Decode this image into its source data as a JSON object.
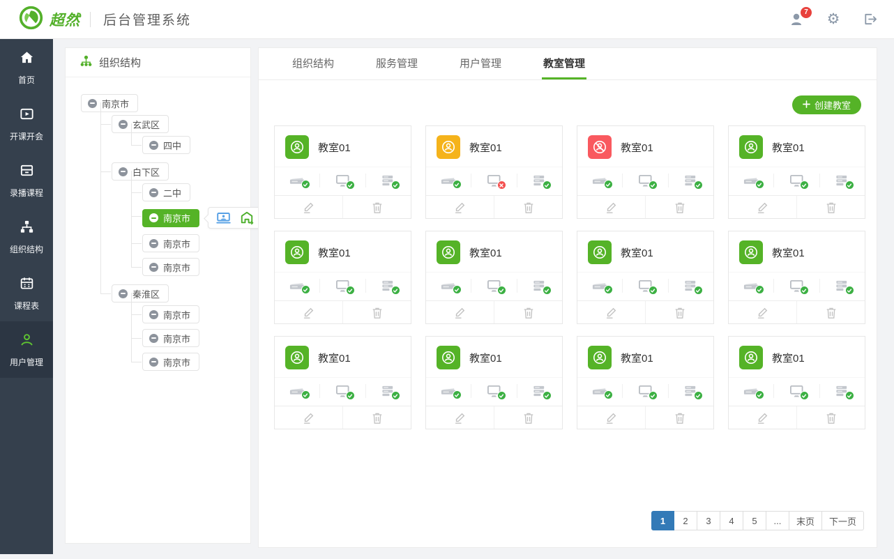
{
  "header": {
    "brand": "超然",
    "app_title": "后台管理系统",
    "notification_count": "7",
    "right_icons": [
      "user-notification-icon",
      "settings-gear-icon",
      "logout-icon"
    ]
  },
  "colors": {
    "accent_green": "#55b327",
    "variant_green": "#55b327",
    "variant_yellow": "#f5b31b",
    "variant_red": "#f9595f",
    "pagination_active_blue": "#337ab7",
    "sidebar_bg": "#35404d",
    "badge_ok_green": "#3cb043",
    "badge_error_red": "#f4504f"
  },
  "sidebar": {
    "items": [
      {
        "label": "首页",
        "icon": "home-icon",
        "active": false
      },
      {
        "label": "开课开会",
        "icon": "video-meeting-icon",
        "active": false
      },
      {
        "label": "录播课程",
        "icon": "recorded-course-icon",
        "active": false
      },
      {
        "label": "组织结构",
        "icon": "org-structure-icon",
        "active": false
      },
      {
        "label": "课程表",
        "icon": "timetable-icon",
        "active": false
      },
      {
        "label": "用户管理",
        "icon": "user-management-icon",
        "active": true
      }
    ]
  },
  "tree_panel": {
    "title": "组织结构",
    "title_icon": "org-tree-icon",
    "tree": {
      "label": "南京市",
      "children": [
        {
          "label": "玄武区",
          "children": [
            {
              "label": "四中"
            }
          ]
        },
        {
          "label": "白下区",
          "children": [
            {
              "label": "二中"
            },
            {
              "label": "南京市",
              "selected": true,
              "actions": [
                {
                  "icon": "classroom-device-icon",
                  "color": "#56a0e5"
                },
                {
                  "icon": "building-sync-icon",
                  "color": "#4daf2c"
                },
                {
                  "icon": "member-icon",
                  "color": "#f3ab18"
                }
              ]
            },
            {
              "label": "南京市"
            },
            {
              "label": "南京市"
            }
          ]
        },
        {
          "label": "秦淮区",
          "children": [
            {
              "label": "南京市"
            },
            {
              "label": "南京市"
            },
            {
              "label": "南京市"
            }
          ]
        }
      ]
    }
  },
  "main": {
    "tabs": [
      {
        "label": "组织结构",
        "active": false
      },
      {
        "label": "服务管理",
        "active": false
      },
      {
        "label": "用户管理",
        "active": false
      },
      {
        "label": "教室管理",
        "active": true
      }
    ],
    "create_button": {
      "label": "创建教室",
      "icon": "plus-icon"
    },
    "cards": [
      {
        "name": "教室01",
        "variant": "green",
        "statuses": [
          {
            "device": "recorder",
            "state": "ok"
          },
          {
            "device": "display",
            "state": "ok"
          },
          {
            "device": "server",
            "state": "ok"
          }
        ]
      },
      {
        "name": "教室01",
        "variant": "yellow",
        "statuses": [
          {
            "device": "recorder",
            "state": "ok"
          },
          {
            "device": "display",
            "state": "error"
          },
          {
            "device": "server",
            "state": "ok"
          }
        ]
      },
      {
        "name": "教室01",
        "variant": "red",
        "statuses": [
          {
            "device": "recorder",
            "state": "ok"
          },
          {
            "device": "display",
            "state": "ok"
          },
          {
            "device": "server",
            "state": "ok"
          }
        ]
      },
      {
        "name": "教室01",
        "variant": "green",
        "statuses": [
          {
            "device": "recorder",
            "state": "ok"
          },
          {
            "device": "display",
            "state": "ok"
          },
          {
            "device": "server",
            "state": "ok"
          }
        ]
      },
      {
        "name": "教室01",
        "variant": "green",
        "statuses": [
          {
            "device": "recorder",
            "state": "ok"
          },
          {
            "device": "display",
            "state": "ok"
          },
          {
            "device": "server",
            "state": "ok"
          }
        ]
      },
      {
        "name": "教室01",
        "variant": "green",
        "statuses": [
          {
            "device": "recorder",
            "state": "ok"
          },
          {
            "device": "display",
            "state": "ok"
          },
          {
            "device": "server",
            "state": "ok"
          }
        ]
      },
      {
        "name": "教室01",
        "variant": "green",
        "statuses": [
          {
            "device": "recorder",
            "state": "ok"
          },
          {
            "device": "display",
            "state": "ok"
          },
          {
            "device": "server",
            "state": "ok"
          }
        ]
      },
      {
        "name": "教室01",
        "variant": "green",
        "statuses": [
          {
            "device": "recorder",
            "state": "ok"
          },
          {
            "device": "display",
            "state": "ok"
          },
          {
            "device": "server",
            "state": "ok"
          }
        ]
      },
      {
        "name": "教室01",
        "variant": "green",
        "statuses": [
          {
            "device": "recorder",
            "state": "ok"
          },
          {
            "device": "display",
            "state": "ok"
          },
          {
            "device": "server",
            "state": "ok"
          }
        ]
      },
      {
        "name": "教室01",
        "variant": "green",
        "statuses": [
          {
            "device": "recorder",
            "state": "ok"
          },
          {
            "device": "display",
            "state": "ok"
          },
          {
            "device": "server",
            "state": "ok"
          }
        ]
      },
      {
        "name": "教室01",
        "variant": "green",
        "statuses": [
          {
            "device": "recorder",
            "state": "ok"
          },
          {
            "device": "display",
            "state": "ok"
          },
          {
            "device": "server",
            "state": "ok"
          }
        ]
      },
      {
        "name": "教室01",
        "variant": "green",
        "statuses": [
          {
            "device": "recorder",
            "state": "ok"
          },
          {
            "device": "display",
            "state": "ok"
          },
          {
            "device": "server",
            "state": "ok"
          }
        ]
      }
    ],
    "card_action_icons": {
      "edit": "edit-pencil-icon",
      "delete": "trash-icon"
    },
    "pagination": {
      "items": [
        "1",
        "2",
        "3",
        "4",
        "5",
        "...",
        "末页",
        "下一页"
      ],
      "active_index": 0
    }
  }
}
